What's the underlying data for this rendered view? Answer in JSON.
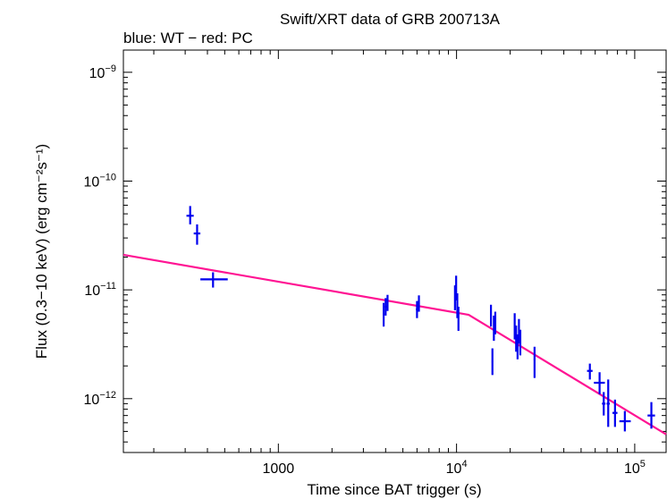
{
  "chart_data": {
    "type": "scatter",
    "title": "Swift/XRT data of GRB 200713A",
    "subtitle": "blue: WT − red: PC",
    "xlabel": "Time since BAT trigger (s)",
    "ylabel": "Flux (0.3−10 keV) (erg cm⁻²s⁻¹)",
    "x_scale": "log",
    "y_scale": "log",
    "xlim": [
      135,
      150000
    ],
    "ylim": [
      3.2e-13,
      1.6e-09
    ],
    "x_ticks": [
      {
        "value": 1000,
        "base": "1000",
        "exp": ""
      },
      {
        "value": 10000,
        "base": "10",
        "exp": "4"
      },
      {
        "value": 100000,
        "base": "10",
        "exp": "5"
      }
    ],
    "y_ticks": [
      {
        "value": 1e-12,
        "base": "10",
        "exp": "−12"
      },
      {
        "value": 1e-11,
        "base": "10",
        "exp": "−11"
      },
      {
        "value": 1e-10,
        "base": "10",
        "exp": "−10"
      },
      {
        "value": 1e-09,
        "base": "10",
        "exp": "−9"
      }
    ],
    "colors": {
      "data": "#0000ee",
      "model": "#ff1493",
      "axis": "#000000"
    },
    "series": [
      {
        "points": [
          {
            "x": 320,
            "xlo": 305,
            "xhi": 335,
            "y": 4.8e-11,
            "ylo": 4e-11,
            "yhi": 5.9e-11
          },
          {
            "x": 350,
            "xlo": 335,
            "xhi": 365,
            "y": 3.3e-11,
            "ylo": 2.6e-11,
            "yhi": 4e-11
          },
          {
            "x": 430,
            "xlo": 365,
            "xhi": 520,
            "y": 1.25e-11,
            "ylo": 1.05e-11,
            "yhi": 1.45e-11
          },
          {
            "x": 3900,
            "xlo": 3850,
            "xhi": 3950,
            "y": 6e-12,
            "ylo": 4.6e-12,
            "yhi": 7.6e-12
          },
          {
            "x": 4000,
            "xlo": 3950,
            "xhi": 4050,
            "y": 7e-12,
            "ylo": 5.8e-12,
            "yhi": 8.4e-12
          },
          {
            "x": 4100,
            "xlo": 4050,
            "xhi": 4150,
            "y": 7.6e-12,
            "ylo": 6.4e-12,
            "yhi": 9e-12
          },
          {
            "x": 6000,
            "xlo": 5920,
            "xhi": 6080,
            "y": 6.6e-12,
            "ylo": 5.5e-12,
            "yhi": 7.9e-12
          },
          {
            "x": 6150,
            "xlo": 6080,
            "xhi": 6220,
            "y": 7.5e-12,
            "ylo": 6.3e-12,
            "yhi": 8.9e-12
          },
          {
            "x": 9800,
            "xlo": 9700,
            "xhi": 9900,
            "y": 8.5e-12,
            "ylo": 6.5e-12,
            "yhi": 1.1e-11
          },
          {
            "x": 9950,
            "xlo": 9900,
            "xhi": 10000,
            "y": 1.05e-11,
            "ylo": 8e-12,
            "yhi": 1.35e-11
          },
          {
            "x": 10100,
            "xlo": 10000,
            "xhi": 10200,
            "y": 7.2e-12,
            "ylo": 5.5e-12,
            "yhi": 9.3e-12
          },
          {
            "x": 10250,
            "xlo": 10200,
            "xhi": 10300,
            "y": 5.5e-12,
            "ylo": 4.2e-12,
            "yhi": 7e-12
          },
          {
            "x": 15600,
            "xlo": 15450,
            "xhi": 15750,
            "y": 5.8e-12,
            "ylo": 4.6e-12,
            "yhi": 7.3e-12
          },
          {
            "x": 15900,
            "xlo": 15750,
            "xhi": 16050,
            "y": 2.2e-12,
            "ylo": 1.65e-12,
            "yhi": 2.9e-12
          },
          {
            "x": 16200,
            "xlo": 16050,
            "xhi": 16350,
            "y": 4.5e-12,
            "ylo": 3.4e-12,
            "yhi": 5.8e-12
          },
          {
            "x": 16500,
            "xlo": 16350,
            "xhi": 16650,
            "y": 5e-12,
            "ylo": 3.9e-12,
            "yhi": 6.3e-12
          },
          {
            "x": 21200,
            "xlo": 21050,
            "xhi": 21350,
            "y": 4.6e-12,
            "ylo": 3.5e-12,
            "yhi": 6.1e-12
          },
          {
            "x": 21600,
            "xlo": 21400,
            "xhi": 21800,
            "y": 3.6e-12,
            "ylo": 2.7e-12,
            "yhi": 4.7e-12
          },
          {
            "x": 22000,
            "xlo": 21800,
            "xhi": 22200,
            "y": 3e-12,
            "ylo": 2.3e-12,
            "yhi": 3.9e-12
          },
          {
            "x": 22400,
            "xlo": 22200,
            "xhi": 22600,
            "y": 4.2e-12,
            "ylo": 3.2e-12,
            "yhi": 5.4e-12
          },
          {
            "x": 22800,
            "xlo": 22600,
            "xhi": 23000,
            "y": 3.3e-12,
            "ylo": 2.5e-12,
            "yhi": 4.3e-12
          },
          {
            "x": 27400,
            "xlo": 27100,
            "xhi": 27700,
            "y": 2.3e-12,
            "ylo": 1.55e-12,
            "yhi": 3e-12
          },
          {
            "x": 56000,
            "xlo": 54000,
            "xhi": 58000,
            "y": 1.8e-12,
            "ylo": 1.5e-12,
            "yhi": 2.1e-12
          },
          {
            "x": 63500,
            "xlo": 59000,
            "xhi": 68000,
            "y": 1.4e-12,
            "ylo": 1.1e-12,
            "yhi": 1.75e-12
          },
          {
            "x": 67000,
            "xlo": 65500,
            "xhi": 68500,
            "y": 9e-13,
            "ylo": 7e-13,
            "yhi": 1.15e-12
          },
          {
            "x": 71000,
            "xlo": 69500,
            "xhi": 72500,
            "y": 9e-13,
            "ylo": 5.5e-13,
            "yhi": 1.5e-12
          },
          {
            "x": 77500,
            "xlo": 75000,
            "xhi": 80000,
            "y": 7.4e-13,
            "ylo": 5.5e-13,
            "yhi": 9.8e-13
          },
          {
            "x": 88000,
            "xlo": 82000,
            "xhi": 95000,
            "y": 6.2e-13,
            "ylo": 5e-13,
            "yhi": 7.7e-13
          },
          {
            "x": 124000,
            "xlo": 118000,
            "xhi": 130000,
            "y": 7e-13,
            "ylo": 5.3e-13,
            "yhi": 9.3e-13
          }
        ]
      }
    ],
    "model": {
      "type": "broken power law",
      "points": [
        {
          "x": 135,
          "y": 2.1e-11
        },
        {
          "x": 11700,
          "y": 5.9e-12
        },
        {
          "x": 150000,
          "y": 4.7e-13
        }
      ]
    }
  }
}
